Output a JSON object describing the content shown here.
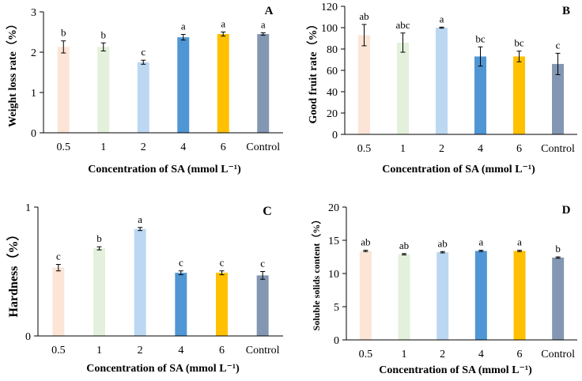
{
  "chart_data": [
    {
      "id": "A",
      "type": "bar",
      "panel_label": "A",
      "categories": [
        "0.5",
        "1",
        "2",
        "4",
        "6",
        "Control"
      ],
      "values": [
        2.13,
        2.13,
        1.75,
        2.37,
        2.45,
        2.45
      ],
      "errors": [
        0.15,
        0.1,
        0.05,
        0.07,
        0.05,
        0.03
      ],
      "significance": [
        "b",
        "b",
        "c",
        "a",
        "a",
        "a"
      ],
      "ylabel": "Weight loss rate（%）",
      "xlabel": "Concentration of  SA (mmol L⁻¹)",
      "ylim": [
        0,
        3
      ],
      "yticks": [
        0,
        1,
        2,
        3
      ]
    },
    {
      "id": "B",
      "type": "bar",
      "panel_label": "B",
      "categories": [
        "0.5",
        "1",
        "2",
        "4",
        "6",
        "Control"
      ],
      "values": [
        93,
        86,
        100,
        73,
        73,
        66
      ],
      "errors": [
        10,
        9,
        0.5,
        9,
        5,
        10
      ],
      "significance": [
        "ab",
        "abc",
        "a",
        "bc",
        "bc",
        "c"
      ],
      "ylabel": "Good fruit rate（%）",
      "xlabel": "Concentration of  SA (mmol L⁻¹)",
      "ylim": [
        0,
        120
      ],
      "yticks": [
        0,
        20,
        40,
        60,
        80,
        100,
        120
      ]
    },
    {
      "id": "C",
      "type": "bar",
      "panel_label": "C",
      "categories": [
        "0.5",
        "1",
        "2",
        "4",
        "6",
        "Control"
      ],
      "values": [
        0.53,
        0.68,
        0.83,
        0.49,
        0.49,
        0.47
      ],
      "errors": [
        0.025,
        0.012,
        0.012,
        0.015,
        0.015,
        0.03
      ],
      "significance": [
        "c",
        "b",
        "a",
        "c",
        "c",
        "c"
      ],
      "ylabel": "Hardness（%）",
      "xlabel": "Concentration of  SA (mmol L⁻¹)",
      "ylim": [
        0,
        1
      ],
      "yticks": [
        0,
        1
      ]
    },
    {
      "id": "D",
      "type": "bar",
      "panel_label": "D",
      "categories": [
        "0.5",
        "1",
        "2",
        "4",
        "6",
        "Control"
      ],
      "values": [
        13.4,
        12.9,
        13.2,
        13.4,
        13.4,
        12.4
      ],
      "errors": [
        0.1,
        0.1,
        0.1,
        0.1,
        0.1,
        0.1
      ],
      "significance": [
        "ab",
        "ab",
        "ab",
        "a",
        "a",
        "b"
      ],
      "ylabel": "Soluble solids content（%）",
      "xlabel": "Concentration of  SA (mmol L⁻¹)",
      "ylim": [
        0,
        20
      ],
      "yticks": [
        0,
        5,
        10,
        15,
        20
      ]
    }
  ],
  "colors": {
    "bars": [
      "#fce5d6",
      "#e3f0db",
      "#bcd7f1",
      "#5096d5",
      "#ffc000",
      "#8397b2"
    ],
    "axis": "#000000"
  }
}
